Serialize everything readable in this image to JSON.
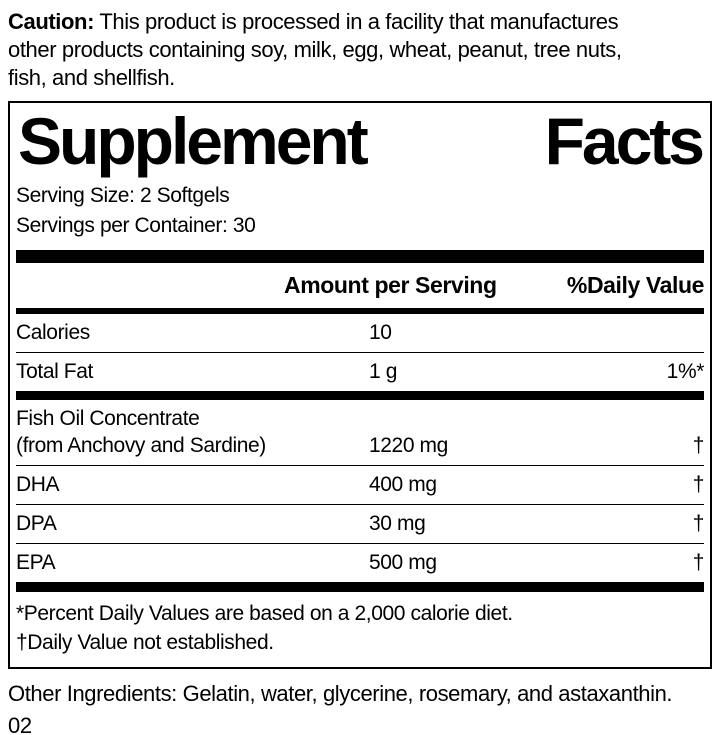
{
  "caution": {
    "label": "Caution:",
    "line1": " This product is processed in a facility that manufactures",
    "line2": "other products containing soy, milk, egg, wheat, peanut, tree nuts,",
    "line3": "fish, and shellfish."
  },
  "panel": {
    "title_word1": "Supplement",
    "title_word2": "Facts",
    "serving_size": "Serving Size: 2 Softgels",
    "servings_per_container": "Servings per Container: 30",
    "columns": {
      "amount": "Amount per Serving",
      "daily_value": "%Daily Value"
    },
    "rows": [
      {
        "name": "Calories",
        "amount": "10",
        "dv": ""
      },
      {
        "name": "Total Fat",
        "amount": "1 g",
        "dv": "1%*"
      },
      {
        "name": "Fish Oil Concentrate",
        "name2": "(from Anchovy and Sardine)",
        "amount": "1220 mg",
        "dv": "†"
      },
      {
        "name": "DHA",
        "amount": "400 mg",
        "dv": "†"
      },
      {
        "name": "DPA",
        "amount": "30 mg",
        "dv": "†"
      },
      {
        "name": "EPA",
        "amount": "500 mg",
        "dv": "†"
      }
    ],
    "footnote1": "*Percent Daily Values are based on a 2,000 calorie diet.",
    "footnote2": "†Daily Value not established."
  },
  "other_ingredients": "Other Ingredients: Gelatin, water, glycerine, rosemary, and astaxanthin.",
  "product_code": "02"
}
